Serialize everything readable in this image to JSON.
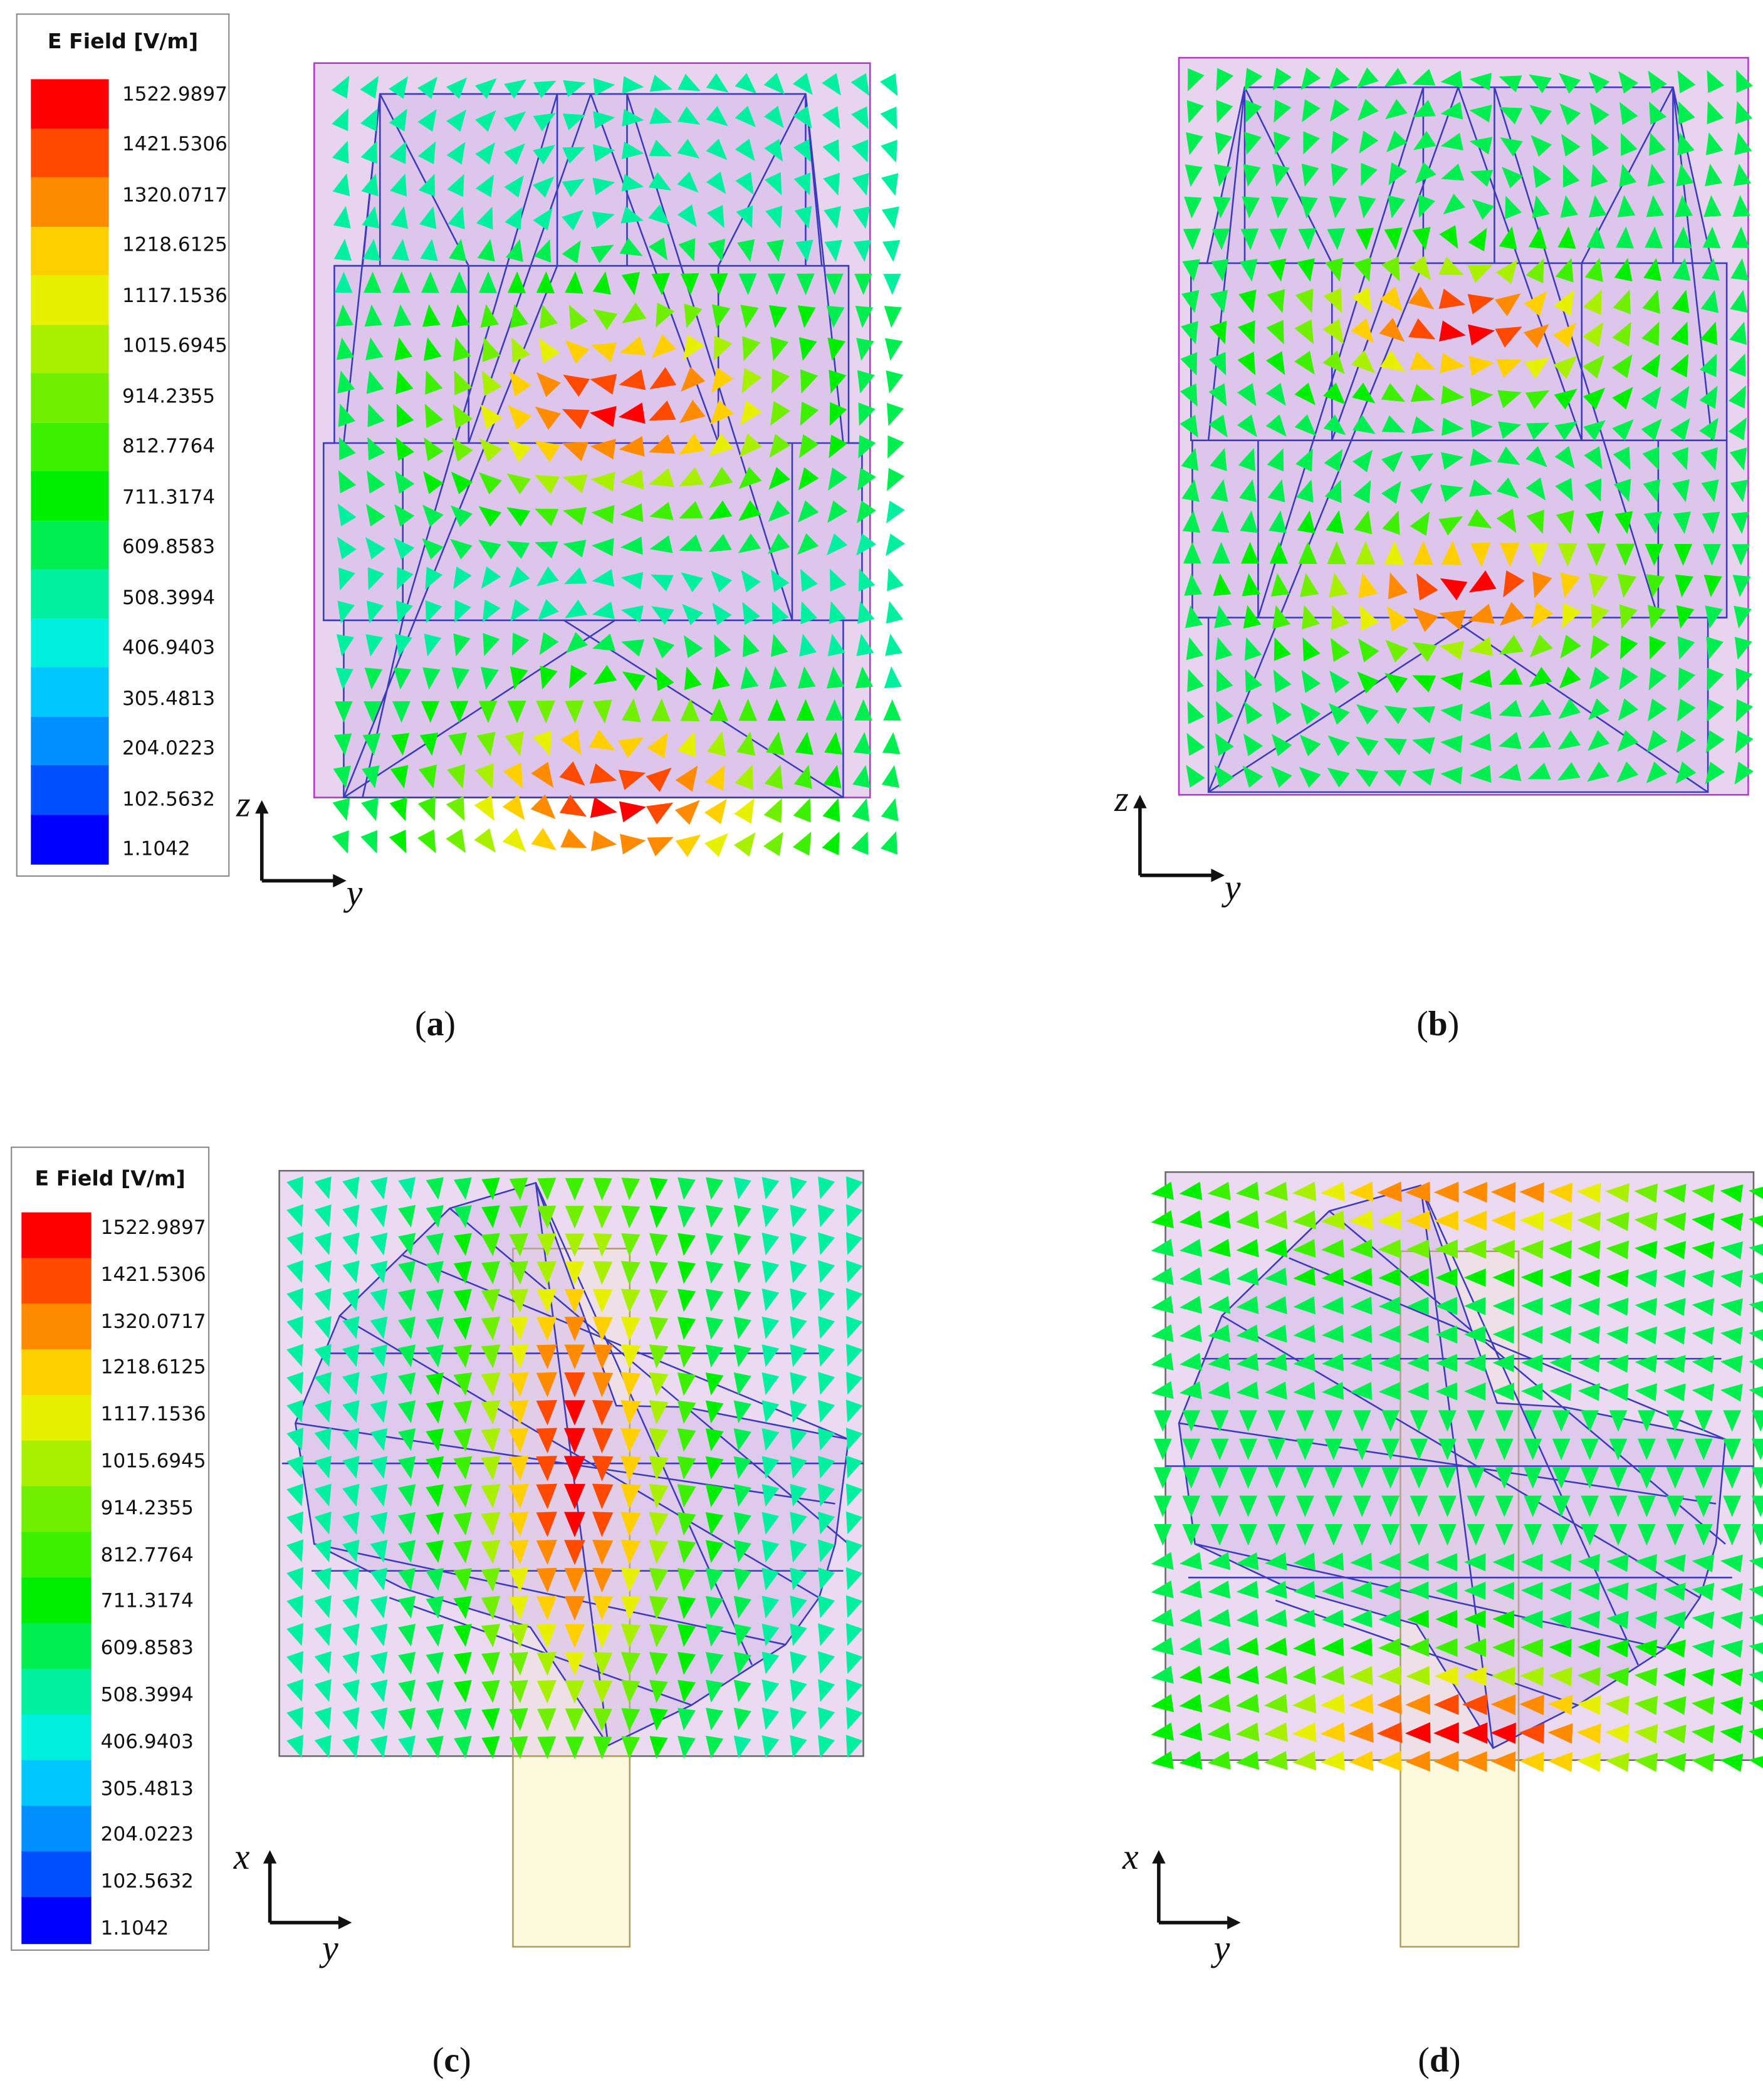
{
  "legend": {
    "title": "E Field [V/m]",
    "ticks": [
      "1522.9897",
      "1421.5306",
      "1320.0717",
      "1218.6125",
      "1117.1536",
      "1015.6945",
      "914.2355",
      "812.7764",
      "711.3174",
      "609.8583",
      "508.3994",
      "406.9403",
      "305.4813",
      "204.0223",
      "102.5632",
      "1.1042"
    ],
    "colors": [
      "#ff0000",
      "#ff4a00",
      "#ff8c00",
      "#ffcf00",
      "#e6f000",
      "#a8f000",
      "#70f000",
      "#3cf000",
      "#00ee00",
      "#00ee50",
      "#00f0a0",
      "#00f0e0",
      "#00c8ff",
      "#0090ff",
      "#0050ff",
      "#0000ff"
    ]
  },
  "panels": [
    {
      "caption": "(a)",
      "caption_letter": "a",
      "axes": {
        "vertical": "z",
        "horizontal": "y"
      }
    },
    {
      "caption": "(b)",
      "caption_letter": "b",
      "axes": {
        "vertical": "z",
        "horizontal": "y"
      }
    },
    {
      "caption": "(c)",
      "caption_letter": "c",
      "axes": {
        "vertical": "x",
        "horizontal": "y"
      }
    },
    {
      "caption": "(d)",
      "caption_letter": "d",
      "axes": {
        "vertical": "x",
        "horizontal": "y"
      }
    }
  ],
  "colors": {
    "box_fill": "#e8d4ee",
    "box_edge_purple": "#b13bc8",
    "box_edge_gray": "#6a6a6a",
    "mesh_line": "#3b3bbd",
    "feed_fill": "#fcf8dc",
    "feed_edge": "#b0a060"
  }
}
